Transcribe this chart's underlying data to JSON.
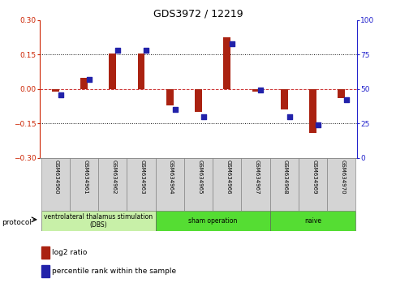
{
  "title": "GDS3972 / 12219",
  "samples": [
    "GSM634960",
    "GSM634961",
    "GSM634962",
    "GSM634963",
    "GSM634964",
    "GSM634965",
    "GSM634966",
    "GSM634967",
    "GSM634968",
    "GSM634969",
    "GSM634970"
  ],
  "log2_ratio": [
    -0.01,
    0.05,
    0.155,
    0.155,
    -0.07,
    -0.1,
    0.225,
    -0.01,
    -0.09,
    -0.19,
    -0.04
  ],
  "percentile_rank": [
    46,
    57,
    78,
    78,
    35,
    30,
    83,
    49,
    30,
    24,
    42
  ],
  "ylim_left": [
    -0.3,
    0.3
  ],
  "ylim_right": [
    0,
    100
  ],
  "yticks_left": [
    -0.3,
    -0.15,
    0.0,
    0.15,
    0.3
  ],
  "yticks_right": [
    0,
    25,
    50,
    75,
    100
  ],
  "hlines": [
    0.15,
    -0.15
  ],
  "bar_color": "#aa2211",
  "dot_color": "#2222aa",
  "zero_line_color": "#cc3333",
  "grid_color": "#111111",
  "bar_width": 0.25,
  "dot_size": 18,
  "bg_color": "#ffffff",
  "plot_bg": "#ffffff",
  "tick_label_color_left": "#cc2200",
  "tick_label_color_right": "#2222cc",
  "groups": [
    {
      "label": "ventrolateral thalamus stimulation\n(DBS)",
      "start": 0,
      "end": 3,
      "color": "#c8f0a8"
    },
    {
      "label": "sham operation",
      "start": 4,
      "end": 7,
      "color": "#55dd33"
    },
    {
      "label": "naive",
      "start": 8,
      "end": 10,
      "color": "#55dd33"
    }
  ],
  "legend_items": [
    {
      "label": "log2 ratio",
      "color": "#aa2211"
    },
    {
      "label": "percentile rank within the sample",
      "color": "#2222aa"
    }
  ]
}
